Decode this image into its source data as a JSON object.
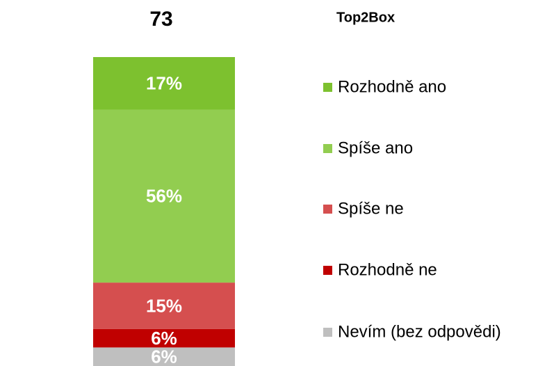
{
  "chart_data": {
    "type": "stacked_bar",
    "top2box": {
      "label": "Top2Box",
      "value": "73"
    },
    "categories": [
      null
    ],
    "ylim": [
      0,
      100
    ],
    "series": [
      {
        "name": "Rozhodně ano",
        "color": "#7dc12f",
        "values": [
          17
        ],
        "value_labels": [
          "17%"
        ]
      },
      {
        "name": "Spíše ano",
        "color": "#92cd50",
        "values": [
          56
        ],
        "value_labels": [
          "56%"
        ]
      },
      {
        "name": "Spíše ne",
        "color": "#d54f4f",
        "values": [
          15
        ],
        "value_labels": [
          "15%"
        ]
      },
      {
        "name": "Rozhodně ne",
        "color": "#c00000",
        "values": [
          6
        ],
        "value_labels": [
          "6%"
        ]
      },
      {
        "name": "Nevím (bez odpovědi)",
        "color": "#bfbfbf",
        "values": [
          6
        ],
        "value_labels": [
          "6%"
        ]
      }
    ],
    "legend": "right"
  }
}
